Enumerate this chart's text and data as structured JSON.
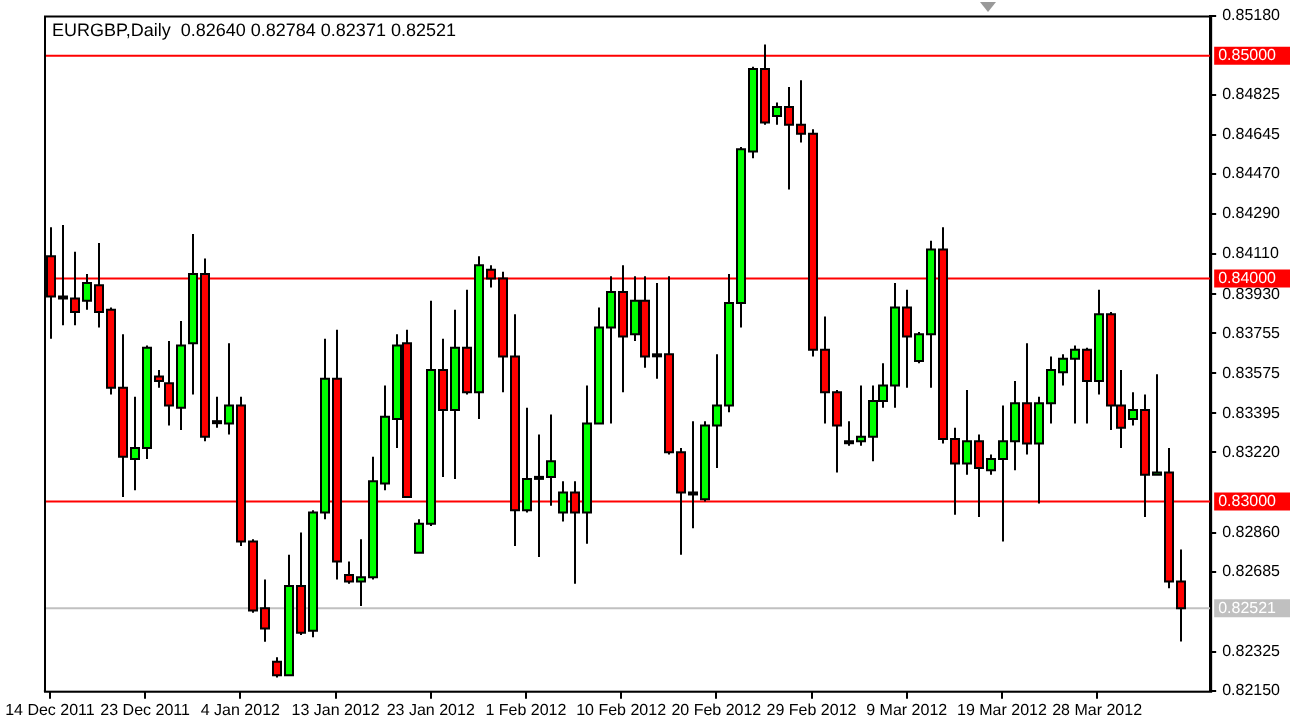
{
  "chart_data": {
    "type": "candlestick",
    "title": "EURGBP,Daily  0.82640 0.82784 0.82371 0.82521",
    "categories": [
      "14 Dec 2011",
      null,
      null,
      null,
      null,
      null,
      null,
      null,
      "23 Dec 2011",
      null,
      null,
      null,
      null,
      null,
      null,
      null,
      "4 Jan 2012",
      null,
      null,
      null,
      null,
      null,
      null,
      null,
      "13 Jan 2012",
      null,
      null,
      null,
      null,
      null,
      null,
      null,
      "23 Jan 2012",
      null,
      null,
      null,
      null,
      null,
      null,
      null,
      "1 Feb 2012",
      null,
      null,
      null,
      null,
      null,
      null,
      null,
      "10 Feb 2012",
      null,
      null,
      null,
      null,
      null,
      null,
      null,
      "20 Feb 2012",
      null,
      null,
      null,
      null,
      null,
      null,
      null,
      "29 Feb 2012",
      null,
      null,
      null,
      null,
      null,
      null,
      null,
      "9 Mar 2012",
      null,
      null,
      null,
      null,
      null,
      null,
      null,
      "19 Mar 2012",
      null,
      null,
      null,
      null,
      null,
      null,
      null,
      "28 Mar 2012",
      null,
      null,
      null,
      null,
      null,
      null,
      null
    ],
    "ohlc": [
      [
        0.841,
        0.8423,
        0.8373,
        0.8392
      ],
      [
        0.8392,
        0.8424,
        0.8379,
        0.8391
      ],
      [
        0.8391,
        0.8412,
        0.8379,
        0.8385
      ],
      [
        0.839,
        0.8402,
        0.8386,
        0.8398
      ],
      [
        0.8397,
        0.8416,
        0.8378,
        0.8385
      ],
      [
        0.8386,
        0.8387,
        0.8348,
        0.8351
      ],
      [
        0.8351,
        0.8375,
        0.8302,
        0.832
      ],
      [
        0.8319,
        0.8347,
        0.8305,
        0.8324
      ],
      [
        0.8324,
        0.837,
        0.8319,
        0.8369
      ],
      [
        0.8356,
        0.8359,
        0.8351,
        0.8354
      ],
      [
        0.8353,
        0.8372,
        0.8334,
        0.8343
      ],
      [
        0.8342,
        0.8381,
        0.8332,
        0.837
      ],
      [
        0.8371,
        0.842,
        0.8348,
        0.8402
      ],
      [
        0.8402,
        0.8409,
        0.8327,
        0.8329
      ],
      [
        0.8336,
        0.8347,
        0.8333,
        0.8336
      ],
      [
        0.8335,
        0.8371,
        0.833,
        0.8343
      ],
      [
        0.8343,
        0.8347,
        0.828,
        0.8282
      ],
      [
        0.8282,
        0.8283,
        0.825,
        0.8251
      ],
      [
        0.8252,
        0.8265,
        0.8237,
        0.8243
      ],
      [
        0.8228,
        0.823,
        0.8221,
        0.8222
      ],
      [
        0.8222,
        0.8276,
        0.8222,
        0.8262
      ],
      [
        0.8262,
        0.8286,
        0.824,
        0.8241
      ],
      [
        0.8242,
        0.8296,
        0.8239,
        0.8295
      ],
      [
        0.8295,
        0.8373,
        0.8292,
        0.8355
      ],
      [
        0.8355,
        0.8377,
        0.8265,
        0.8273
      ],
      [
        0.8267,
        0.8273,
        0.8263,
        0.8264
      ],
      [
        0.8264,
        0.8283,
        0.8253,
        0.8266
      ],
      [
        0.8266,
        0.832,
        0.8265,
        0.8309
      ],
      [
        0.8308,
        0.8352,
        0.8305,
        0.8338
      ],
      [
        0.8337,
        0.8375,
        0.8324,
        0.837
      ],
      [
        0.8371,
        0.8377,
        0.8302,
        0.8302
      ],
      [
        0.8277,
        0.8292,
        0.8277,
        0.829
      ],
      [
        0.829,
        0.839,
        0.8289,
        0.8359
      ],
      [
        0.8359,
        0.8373,
        0.8311,
        0.8341
      ],
      [
        0.8341,
        0.8386,
        0.831,
        0.8369
      ],
      [
        0.8369,
        0.8395,
        0.8348,
        0.8349
      ],
      [
        0.8349,
        0.841,
        0.8337,
        0.8406
      ],
      [
        0.8404,
        0.8406,
        0.8396,
        0.84
      ],
      [
        0.84,
        0.8403,
        0.8349,
        0.8365
      ],
      [
        0.8365,
        0.8384,
        0.828,
        0.8296
      ],
      [
        0.8296,
        0.8342,
        0.8295,
        0.831
      ],
      [
        0.8311,
        0.833,
        0.8275,
        0.8311
      ],
      [
        0.8311,
        0.8339,
        0.8298,
        0.8318
      ],
      [
        0.8295,
        0.8309,
        0.8291,
        0.8304
      ],
      [
        0.8304,
        0.8309,
        0.8263,
        0.8295
      ],
      [
        0.8295,
        0.8352,
        0.8281,
        0.8335
      ],
      [
        0.8335,
        0.8387,
        0.8335,
        0.8378
      ],
      [
        0.8378,
        0.8401,
        0.8335,
        0.8394
      ],
      [
        0.8394,
        0.8406,
        0.8349,
        0.8374
      ],
      [
        0.8375,
        0.8401,
        0.8372,
        0.839
      ],
      [
        0.839,
        0.8401,
        0.836,
        0.8365
      ],
      [
        0.8366,
        0.8398,
        0.8355,
        0.8366
      ],
      [
        0.8366,
        0.8401,
        0.8321,
        0.8322
      ],
      [
        0.8322,
        0.8324,
        0.8276,
        0.8304
      ],
      [
        0.8304,
        0.8336,
        0.8288,
        0.8304
      ],
      [
        0.8301,
        0.8336,
        0.83,
        0.8334
      ],
      [
        0.8334,
        0.8366,
        0.8315,
        0.8343
      ],
      [
        0.8343,
        0.8402,
        0.834,
        0.8389
      ],
      [
        0.8389,
        0.8459,
        0.8378,
        0.8458
      ],
      [
        0.8457,
        0.8495,
        0.8454,
        0.8494
      ],
      [
        0.8494,
        0.8505,
        0.8469,
        0.847
      ],
      [
        0.8473,
        0.8479,
        0.8469,
        0.8477
      ],
      [
        0.8477,
        0.8486,
        0.844,
        0.8469
      ],
      [
        0.8469,
        0.8489,
        0.8461,
        0.8465
      ],
      [
        0.8465,
        0.8467,
        0.8365,
        0.8368
      ],
      [
        0.8368,
        0.8383,
        0.8335,
        0.8349
      ],
      [
        0.8349,
        0.835,
        0.8313,
        0.8334
      ],
      [
        0.8327,
        0.8336,
        0.8325,
        0.8327
      ],
      [
        0.8327,
        0.8352,
        0.8325,
        0.8329
      ],
      [
        0.8329,
        0.8352,
        0.8318,
        0.8345
      ],
      [
        0.8345,
        0.8362,
        0.8342,
        0.8352
      ],
      [
        0.8352,
        0.8398,
        0.8342,
        0.8387
      ],
      [
        0.8387,
        0.8395,
        0.8351,
        0.8374
      ],
      [
        0.8363,
        0.8376,
        0.8362,
        0.8375
      ],
      [
        0.8375,
        0.8417,
        0.8351,
        0.8413
      ],
      [
        0.8413,
        0.8423,
        0.8326,
        0.8328
      ],
      [
        0.8328,
        0.8333,
        0.8294,
        0.8317
      ],
      [
        0.8317,
        0.835,
        0.8312,
        0.8327
      ],
      [
        0.8327,
        0.833,
        0.8293,
        0.8315
      ],
      [
        0.8314,
        0.8321,
        0.8312,
        0.8319
      ],
      [
        0.8319,
        0.8343,
        0.8282,
        0.8327
      ],
      [
        0.8327,
        0.8354,
        0.8314,
        0.8344
      ],
      [
        0.8344,
        0.8371,
        0.8321,
        0.8326
      ],
      [
        0.8326,
        0.8347,
        0.8299,
        0.8344
      ],
      [
        0.8344,
        0.8365,
        0.8335,
        0.8359
      ],
      [
        0.8358,
        0.8366,
        0.8352,
        0.8364
      ],
      [
        0.8364,
        0.837,
        0.8335,
        0.8368
      ],
      [
        0.8368,
        0.8369,
        0.8335,
        0.8354
      ],
      [
        0.8354,
        0.8395,
        0.8348,
        0.8384
      ],
      [
        0.8384,
        0.8385,
        0.8332,
        0.8343
      ],
      [
        0.8343,
        0.8359,
        0.8324,
        0.8333
      ],
      [
        0.8337,
        0.8349,
        0.8334,
        0.8341
      ],
      [
        0.8341,
        0.8348,
        0.8293,
        0.8312
      ],
      [
        0.8312,
        0.8357,
        0.8312,
        0.8313
      ],
      [
        0.8313,
        0.8324,
        0.8261,
        0.8264
      ],
      [
        0.8264,
        0.82784,
        0.82371,
        0.82521
      ]
    ],
    "colors": [
      "#ff0000",
      "#ff0000",
      "#ff0000",
      "#00ff00",
      "#ff0000",
      "#ff0000",
      "#ff0000",
      "#00ff00",
      "#00ff00",
      "#ff0000",
      "#ff0000",
      "#00ff00",
      "#00ff00",
      "#ff0000",
      "#00ff00",
      "#00ff00",
      "#ff0000",
      "#ff0000",
      "#ff0000",
      "#ff0000",
      "#00ff00",
      "#ff0000",
      "#00ff00",
      "#00ff00",
      "#ff0000",
      "#ff0000",
      "#00ff00",
      "#00ff00",
      "#00ff00",
      "#00ff00",
      "#ff0000",
      "#00ff00",
      "#00ff00",
      "#ff0000",
      "#00ff00",
      "#ff0000",
      "#00ff00",
      "#ff0000",
      "#ff0000",
      "#ff0000",
      "#00ff00",
      "#00ff00",
      "#00ff00",
      "#00ff00",
      "#ff0000",
      "#00ff00",
      "#00ff00",
      "#00ff00",
      "#ff0000",
      "#00ff00",
      "#ff0000",
      "#00ff00",
      "#ff0000",
      "#ff0000",
      "#00ff00",
      "#00ff00",
      "#00ff00",
      "#00ff00",
      "#00ff00",
      "#00ff00",
      "#ff0000",
      "#00ff00",
      "#ff0000",
      "#ff0000",
      "#ff0000",
      "#ff0000",
      "#ff0000",
      "#00ff00",
      "#00ff00",
      "#00ff00",
      "#00ff00",
      "#00ff00",
      "#ff0000",
      "#00ff00",
      "#00ff00",
      "#ff0000",
      "#ff0000",
      "#00ff00",
      "#ff0000",
      "#00ff00",
      "#00ff00",
      "#00ff00",
      "#ff0000",
      "#00ff00",
      "#00ff00",
      "#00ff00",
      "#00ff00",
      "#ff0000",
      "#00ff00",
      "#ff0000",
      "#ff0000",
      "#00ff00",
      "#ff0000",
      "#00ff00",
      "#ff0000",
      "#ff0000"
    ],
    "ylim": [
      0.8215,
      0.8518
    ],
    "yticks": [
      {
        "value": 0.8518,
        "label": "0.85180"
      },
      {
        "value": 0.84825,
        "label": "0.84825"
      },
      {
        "value": 0.84645,
        "label": "0.84645"
      },
      {
        "value": 0.8447,
        "label": "0.84470"
      },
      {
        "value": 0.8429,
        "label": "0.84290"
      },
      {
        "value": 0.8411,
        "label": "0.84110"
      },
      {
        "value": 0.8393,
        "label": "0.83930"
      },
      {
        "value": 0.83755,
        "label": "0.83755"
      },
      {
        "value": 0.83575,
        "label": "0.83575"
      },
      {
        "value": 0.83395,
        "label": "0.83395"
      },
      {
        "value": 0.8322,
        "label": "0.83220"
      },
      {
        "value": 0.8286,
        "label": "0.82860"
      },
      {
        "value": 0.82685,
        "label": "0.82685"
      },
      {
        "value": 0.82325,
        "label": "0.82325"
      },
      {
        "value": 0.8215,
        "label": "0.82150"
      }
    ],
    "ref_lines": [
      {
        "axis": "y",
        "value": 0.85,
        "label": "0.85000",
        "color": "#ff0000"
      },
      {
        "axis": "y",
        "value": 0.84,
        "label": "0.84000",
        "color": "#ff0000"
      },
      {
        "axis": "y",
        "value": 0.83,
        "label": "0.83000",
        "color": "#ff0000"
      },
      {
        "axis": "y",
        "value": 0.82521,
        "label": "0.82521",
        "color": "#c0c0c0"
      }
    ]
  }
}
